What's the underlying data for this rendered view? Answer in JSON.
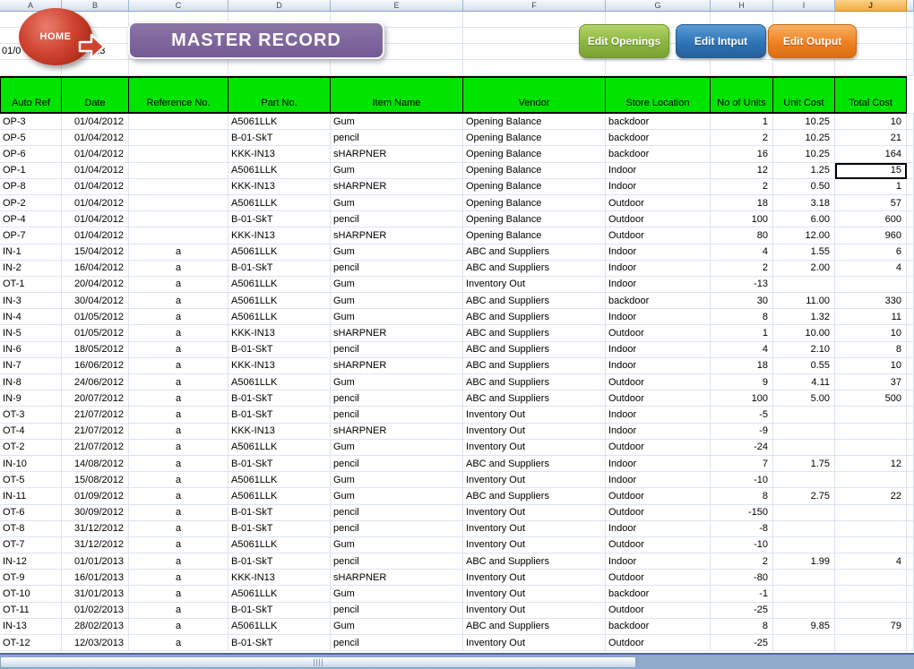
{
  "toolbar": {
    "home_label": "HOME",
    "banner_title": "MASTER RECORD",
    "date_fragment_left": "01/0",
    "date_fragment_right": "013",
    "buttons": [
      {
        "label": "Edit Openings",
        "color": "#8db842"
      },
      {
        "label": "Edit Intput",
        "color": "#2e74b5"
      },
      {
        "label": "Edit Output",
        "color": "#ef8122"
      }
    ]
  },
  "columns": {
    "letters": [
      "A",
      "B",
      "C",
      "D",
      "E",
      "F",
      "G",
      "H",
      "I",
      "J",
      ""
    ],
    "highlighted_letter": "J"
  },
  "table": {
    "headers": [
      "Auto Ref",
      "Date",
      "Reference No.",
      "Part No.",
      "Item Name",
      "Vendor",
      "Store Location",
      "No of Units",
      "Unit Cost",
      "Total Cost"
    ],
    "rows": [
      [
        "OP-3",
        "01/04/2012",
        "",
        "A5061LLK",
        "Gum",
        "Opening Balance",
        "backdoor",
        "1",
        "10.25",
        "10"
      ],
      [
        "OP-5",
        "01/04/2012",
        "",
        "B-01-SkT",
        "pencil",
        "Opening Balance",
        "backdoor",
        "2",
        "10.25",
        "21"
      ],
      [
        "OP-6",
        "01/04/2012",
        "",
        "KKK-IN13",
        "sHARPNER",
        "Opening Balance",
        "backdoor",
        "16",
        "10.25",
        "164"
      ],
      [
        "OP-1",
        "01/04/2012",
        "",
        "A5061LLK",
        "Gum",
        "Opening Balance",
        "Indoor",
        "12",
        "1.25",
        "15"
      ],
      [
        "OP-8",
        "01/04/2012",
        "",
        "KKK-IN13",
        "sHARPNER",
        "Opening Balance",
        "Indoor",
        "2",
        "0.50",
        "1"
      ],
      [
        "OP-2",
        "01/04/2012",
        "",
        "A5061LLK",
        "Gum",
        "Opening Balance",
        "Outdoor",
        "18",
        "3.18",
        "57"
      ],
      [
        "OP-4",
        "01/04/2012",
        "",
        "B-01-SkT",
        "pencil",
        "Opening Balance",
        "Outdoor",
        "100",
        "6.00",
        "600"
      ],
      [
        "OP-7",
        "01/04/2012",
        "",
        "KKK-IN13",
        "sHARPNER",
        "Opening Balance",
        "Outdoor",
        "80",
        "12.00",
        "960"
      ],
      [
        "IN-1",
        "15/04/2012",
        "a",
        "A5061LLK",
        "Gum",
        "ABC and Suppliers",
        "Indoor",
        "4",
        "1.55",
        "6"
      ],
      [
        "IN-2",
        "16/04/2012",
        "a",
        "B-01-SkT",
        "pencil",
        "ABC and Suppliers",
        "Indoor",
        "2",
        "2.00",
        "4"
      ],
      [
        "OT-1",
        "20/04/2012",
        "a",
        "A5061LLK",
        "Gum",
        "Inventory Out",
        "Indoor",
        "-13",
        "",
        ""
      ],
      [
        "IN-3",
        "30/04/2012",
        "a",
        "A5061LLK",
        "Gum",
        "ABC and Suppliers",
        "backdoor",
        "30",
        "11.00",
        "330"
      ],
      [
        "IN-4",
        "01/05/2012",
        "a",
        "A5061LLK",
        "Gum",
        "ABC and Suppliers",
        "Indoor",
        "8",
        "1.32",
        "11"
      ],
      [
        "IN-5",
        "01/05/2012",
        "a",
        "KKK-IN13",
        "sHARPNER",
        "ABC and Suppliers",
        "Outdoor",
        "1",
        "10.00",
        "10"
      ],
      [
        "IN-6",
        "18/05/2012",
        "a",
        "B-01-SkT",
        "pencil",
        "ABC and Suppliers",
        "Indoor",
        "4",
        "2.10",
        "8"
      ],
      [
        "IN-7",
        "16/06/2012",
        "a",
        "KKK-IN13",
        "sHARPNER",
        "ABC and Suppliers",
        "Indoor",
        "18",
        "0.55",
        "10"
      ],
      [
        "IN-8",
        "24/06/2012",
        "a",
        "A5061LLK",
        "Gum",
        "ABC and Suppliers",
        "Outdoor",
        "9",
        "4.11",
        "37"
      ],
      [
        "IN-9",
        "20/07/2012",
        "a",
        "B-01-SkT",
        "pencil",
        "ABC and Suppliers",
        "Outdoor",
        "100",
        "5.00",
        "500"
      ],
      [
        "OT-3",
        "21/07/2012",
        "a",
        "B-01-SkT",
        "pencil",
        "Inventory Out",
        "Indoor",
        "-5",
        "",
        ""
      ],
      [
        "OT-4",
        "21/07/2012",
        "a",
        "KKK-IN13",
        "sHARPNER",
        "Inventory Out",
        "Indoor",
        "-9",
        "",
        ""
      ],
      [
        "OT-2",
        "21/07/2012",
        "a",
        "A5061LLK",
        "Gum",
        "Inventory Out",
        "Outdoor",
        "-24",
        "",
        ""
      ],
      [
        "IN-10",
        "14/08/2012",
        "a",
        "B-01-SkT",
        "pencil",
        "ABC and Suppliers",
        "Indoor",
        "7",
        "1.75",
        "12"
      ],
      [
        "OT-5",
        "15/08/2012",
        "a",
        "A5061LLK",
        "Gum",
        "Inventory Out",
        "Indoor",
        "-10",
        "",
        ""
      ],
      [
        "IN-11",
        "01/09/2012",
        "a",
        "A5061LLK",
        "Gum",
        "ABC and Suppliers",
        "Outdoor",
        "8",
        "2.75",
        "22"
      ],
      [
        "OT-6",
        "30/09/2012",
        "a",
        "B-01-SkT",
        "pencil",
        "Inventory Out",
        "Outdoor",
        "-150",
        "",
        ""
      ],
      [
        "OT-8",
        "31/12/2012",
        "a",
        "B-01-SkT",
        "pencil",
        "Inventory Out",
        "Indoor",
        "-8",
        "",
        ""
      ],
      [
        "OT-7",
        "31/12/2012",
        "a",
        "A5061LLK",
        "Gum",
        "Inventory Out",
        "Outdoor",
        "-10",
        "",
        ""
      ],
      [
        "IN-12",
        "01/01/2013",
        "a",
        "B-01-SkT",
        "pencil",
        "ABC and Suppliers",
        "Indoor",
        "2",
        "1.99",
        "4"
      ],
      [
        "OT-9",
        "16/01/2013",
        "a",
        "KKK-IN13",
        "sHARPNER",
        "Inventory Out",
        "Outdoor",
        "-80",
        "",
        ""
      ],
      [
        "OT-10",
        "31/01/2013",
        "a",
        "A5061LLK",
        "Gum",
        "Inventory Out",
        "backdoor",
        "-1",
        "",
        ""
      ],
      [
        "OT-11",
        "01/02/2013",
        "a",
        "B-01-SkT",
        "pencil",
        "Inventory Out",
        "Outdoor",
        "-25",
        "",
        ""
      ],
      [
        "IN-13",
        "28/02/2013",
        "a",
        "A5061LLK",
        "Gum",
        "ABC and Suppliers",
        "backdoor",
        "8",
        "9.85",
        "79"
      ],
      [
        "OT-12",
        "12/03/2013",
        "a",
        "B-01-SkT",
        "pencil",
        "Inventory Out",
        "Outdoor",
        "-25",
        "",
        ""
      ]
    ],
    "selected_cell": {
      "row_index": 3,
      "col_index": 9,
      "value": "15"
    }
  },
  "colors": {
    "header_green": "#00e400",
    "banner_purple": "#7c6497",
    "home_red": "#c63a28",
    "gridline": "#dde4ef",
    "column_highlight_amber": "#f2ab3f",
    "scrollbar_track": "#8ea9c9"
  }
}
